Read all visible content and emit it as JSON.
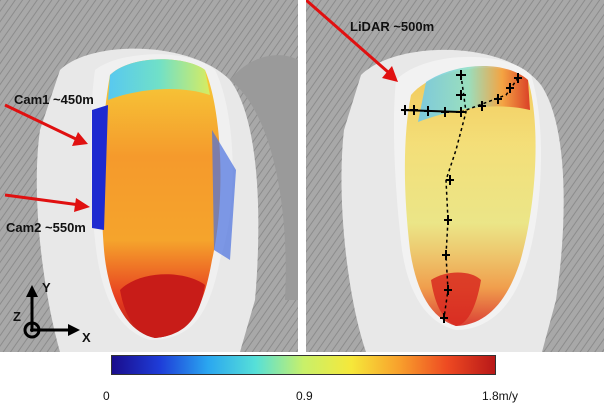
{
  "left_panel": {
    "camera_labels": [
      "Cam1 ~450m",
      "Cam2 ~550m"
    ],
    "axes": {
      "y": "Y",
      "z": "Z",
      "x": "X"
    }
  },
  "right_panel": {
    "lidar_label": "LiDAR ~500m"
  },
  "colorbar": {
    "colors": [
      "#1a0d8c",
      "#1e3cd8",
      "#2aa6f0",
      "#56e0d8",
      "#c8f06a",
      "#f6e83a",
      "#f8a02c",
      "#ee4a22",
      "#b81818"
    ],
    "min_label": "0",
    "mid_label": "0.9",
    "max_label": "1.8m/y"
  }
}
